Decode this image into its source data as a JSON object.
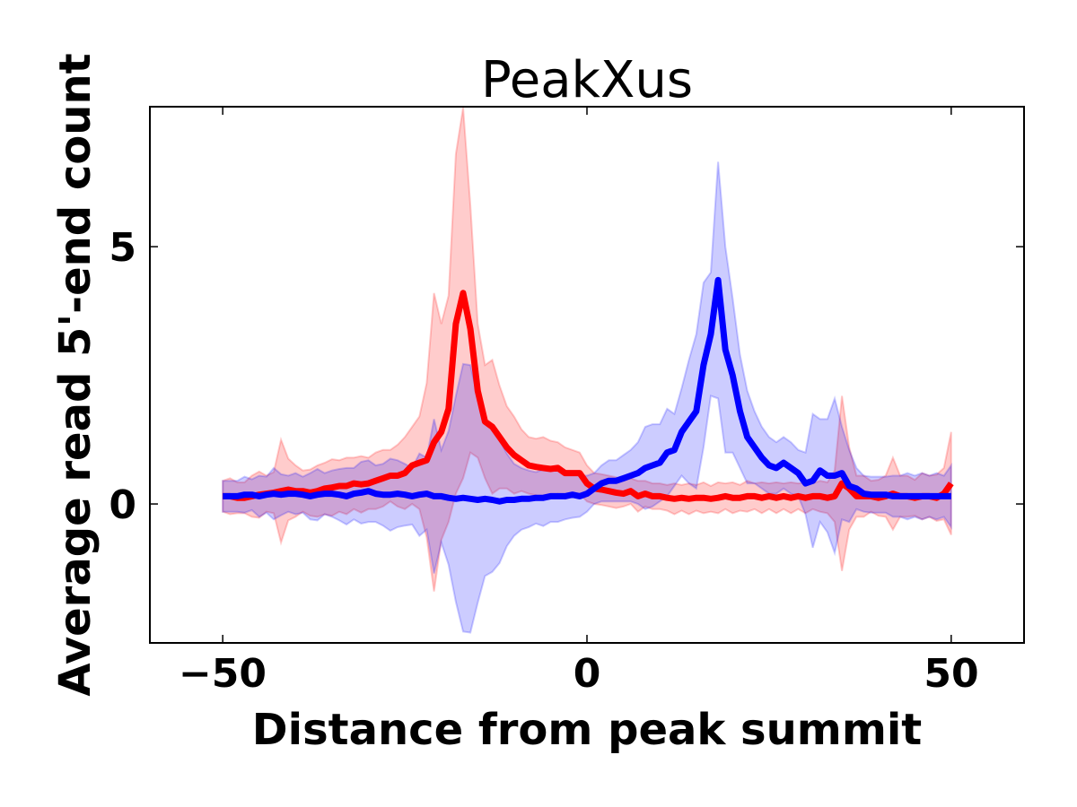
{
  "chart_data": {
    "type": "line",
    "title": "PeakXus",
    "xlabel": "Distance from peak summit",
    "ylabel": "Average read 5'-end count",
    "xlim": [
      -60,
      60
    ],
    "ylim": [
      -2.7,
      7.72
    ],
    "xticks": [
      -50,
      0,
      50
    ],
    "xtick_labels": [
      "−50",
      "0",
      "50"
    ],
    "yticks": [
      0,
      5
    ],
    "ytick_labels": [
      "0",
      "5"
    ],
    "grid": false,
    "legend": "none",
    "x_range": [
      -50,
      50
    ],
    "series": [
      {
        "color": "#ff0000",
        "band": "mean ± sd",
        "mean": [
          0.15,
          0.15,
          0.12,
          0.12,
          0.15,
          0.18,
          0.2,
          0.22,
          0.25,
          0.28,
          0.25,
          0.25,
          0.22,
          0.25,
          0.3,
          0.32,
          0.35,
          0.35,
          0.4,
          0.38,
          0.4,
          0.45,
          0.5,
          0.55,
          0.55,
          0.6,
          0.75,
          0.8,
          0.85,
          1.2,
          1.4,
          1.85,
          3.5,
          4.1,
          3.4,
          2.2,
          1.6,
          1.5,
          1.3,
          1.1,
          0.95,
          0.85,
          0.75,
          0.72,
          0.7,
          0.68,
          0.7,
          0.6,
          0.6,
          0.6,
          0.4,
          0.3,
          0.28,
          0.25,
          0.22,
          0.2,
          0.25,
          0.15,
          0.2,
          0.15,
          0.15,
          0.12,
          0.1,
          0.12,
          0.1,
          0.12,
          0.12,
          0.1,
          0.12,
          0.15,
          0.12,
          0.12,
          0.15,
          0.15,
          0.12,
          0.15,
          0.12,
          0.15,
          0.12,
          0.15,
          0.12,
          0.15,
          0.15,
          0.12,
          0.15,
          0.4,
          0.3,
          0.15,
          0.15,
          0.15,
          0.12,
          0.15,
          0.2,
          0.15,
          0.15,
          0.12,
          0.15,
          0.15,
          0.12,
          0.2,
          0.4
        ],
        "sd": [
          0.3,
          0.35,
          0.3,
          0.3,
          0.4,
          0.45,
          0.35,
          0.4,
          1.0,
          0.6,
          0.5,
          0.4,
          0.45,
          0.5,
          0.5,
          0.55,
          0.5,
          0.55,
          0.5,
          0.55,
          0.5,
          0.55,
          0.55,
          0.5,
          0.6,
          0.7,
          0.75,
          0.9,
          1.5,
          2.9,
          2.1,
          2.2,
          3.3,
          3.6,
          2.4,
          1.3,
          1.1,
          1.3,
          1.0,
          0.8,
          0.75,
          0.6,
          0.55,
          0.55,
          0.6,
          0.55,
          0.5,
          0.5,
          0.45,
          0.4,
          0.35,
          0.3,
          0.3,
          0.3,
          0.3,
          0.25,
          0.25,
          0.3,
          0.25,
          0.25,
          0.25,
          0.25,
          0.3,
          0.25,
          0.3,
          0.25,
          0.3,
          0.25,
          0.3,
          0.25,
          0.3,
          0.25,
          0.3,
          0.25,
          0.3,
          0.25,
          0.3,
          0.25,
          0.3,
          0.25,
          0.3,
          0.25,
          0.3,
          0.3,
          0.5,
          1.7,
          0.8,
          0.4,
          0.4,
          0.3,
          0.35,
          0.4,
          0.7,
          0.4,
          0.4,
          0.35,
          0.45,
          0.4,
          0.45,
          0.5,
          1.0
        ]
      },
      {
        "color": "#0000ff",
        "band": "mean ± sd",
        "mean": [
          0.15,
          0.15,
          0.15,
          0.18,
          0.18,
          0.15,
          0.18,
          0.2,
          0.18,
          0.2,
          0.2,
          0.18,
          0.15,
          0.18,
          0.2,
          0.2,
          0.18,
          0.15,
          0.2,
          0.22,
          0.25,
          0.2,
          0.18,
          0.18,
          0.2,
          0.18,
          0.15,
          0.18,
          0.2,
          0.15,
          0.15,
          0.12,
          0.1,
          0.12,
          0.1,
          0.08,
          0.1,
          0.08,
          0.05,
          0.08,
          0.08,
          0.1,
          0.1,
          0.12,
          0.12,
          0.15,
          0.15,
          0.15,
          0.18,
          0.15,
          0.2,
          0.3,
          0.4,
          0.45,
          0.45,
          0.5,
          0.55,
          0.6,
          0.7,
          0.75,
          0.8,
          1.0,
          1.05,
          1.4,
          1.6,
          1.8,
          2.7,
          3.3,
          4.35,
          3.0,
          2.5,
          1.8,
          1.3,
          1.1,
          0.9,
          0.75,
          0.7,
          0.8,
          0.7,
          0.6,
          0.4,
          0.45,
          0.65,
          0.55,
          0.55,
          0.6,
          0.35,
          0.3,
          0.2,
          0.18,
          0.18,
          0.18,
          0.15,
          0.15,
          0.15,
          0.15,
          0.15,
          0.15,
          0.15,
          0.15,
          0.15
        ],
        "sd": [
          0.3,
          0.3,
          0.3,
          0.35,
          0.3,
          0.4,
          0.35,
          0.5,
          0.4,
          0.35,
          0.4,
          0.35,
          0.45,
          0.5,
          0.4,
          0.45,
          0.5,
          0.55,
          0.5,
          0.6,
          0.6,
          0.55,
          0.6,
          0.7,
          0.65,
          0.6,
          0.55,
          0.8,
          0.7,
          1.5,
          0.9,
          1.3,
          2.0,
          2.6,
          2.6,
          2.0,
          1.5,
          1.4,
          1.2,
          0.9,
          0.7,
          0.6,
          0.55,
          0.5,
          0.55,
          0.5,
          0.5,
          0.45,
          0.45,
          0.4,
          0.35,
          0.3,
          0.35,
          0.4,
          0.4,
          0.45,
          0.5,
          0.6,
          0.8,
          0.8,
          0.75,
          0.85,
          0.7,
          0.85,
          1.2,
          1.5,
          1.6,
          1.2,
          2.3,
          2.0,
          1.5,
          1.1,
          0.9,
          0.7,
          0.6,
          0.55,
          0.5,
          0.5,
          0.5,
          0.45,
          0.6,
          1.3,
          1.0,
          1.1,
          1.5,
          0.9,
          0.7,
          0.4,
          0.35,
          0.35,
          0.35,
          0.35,
          0.4,
          0.4,
          0.45,
          0.4,
          0.45,
          0.4,
          0.45,
          0.4,
          0.6
        ]
      }
    ]
  }
}
